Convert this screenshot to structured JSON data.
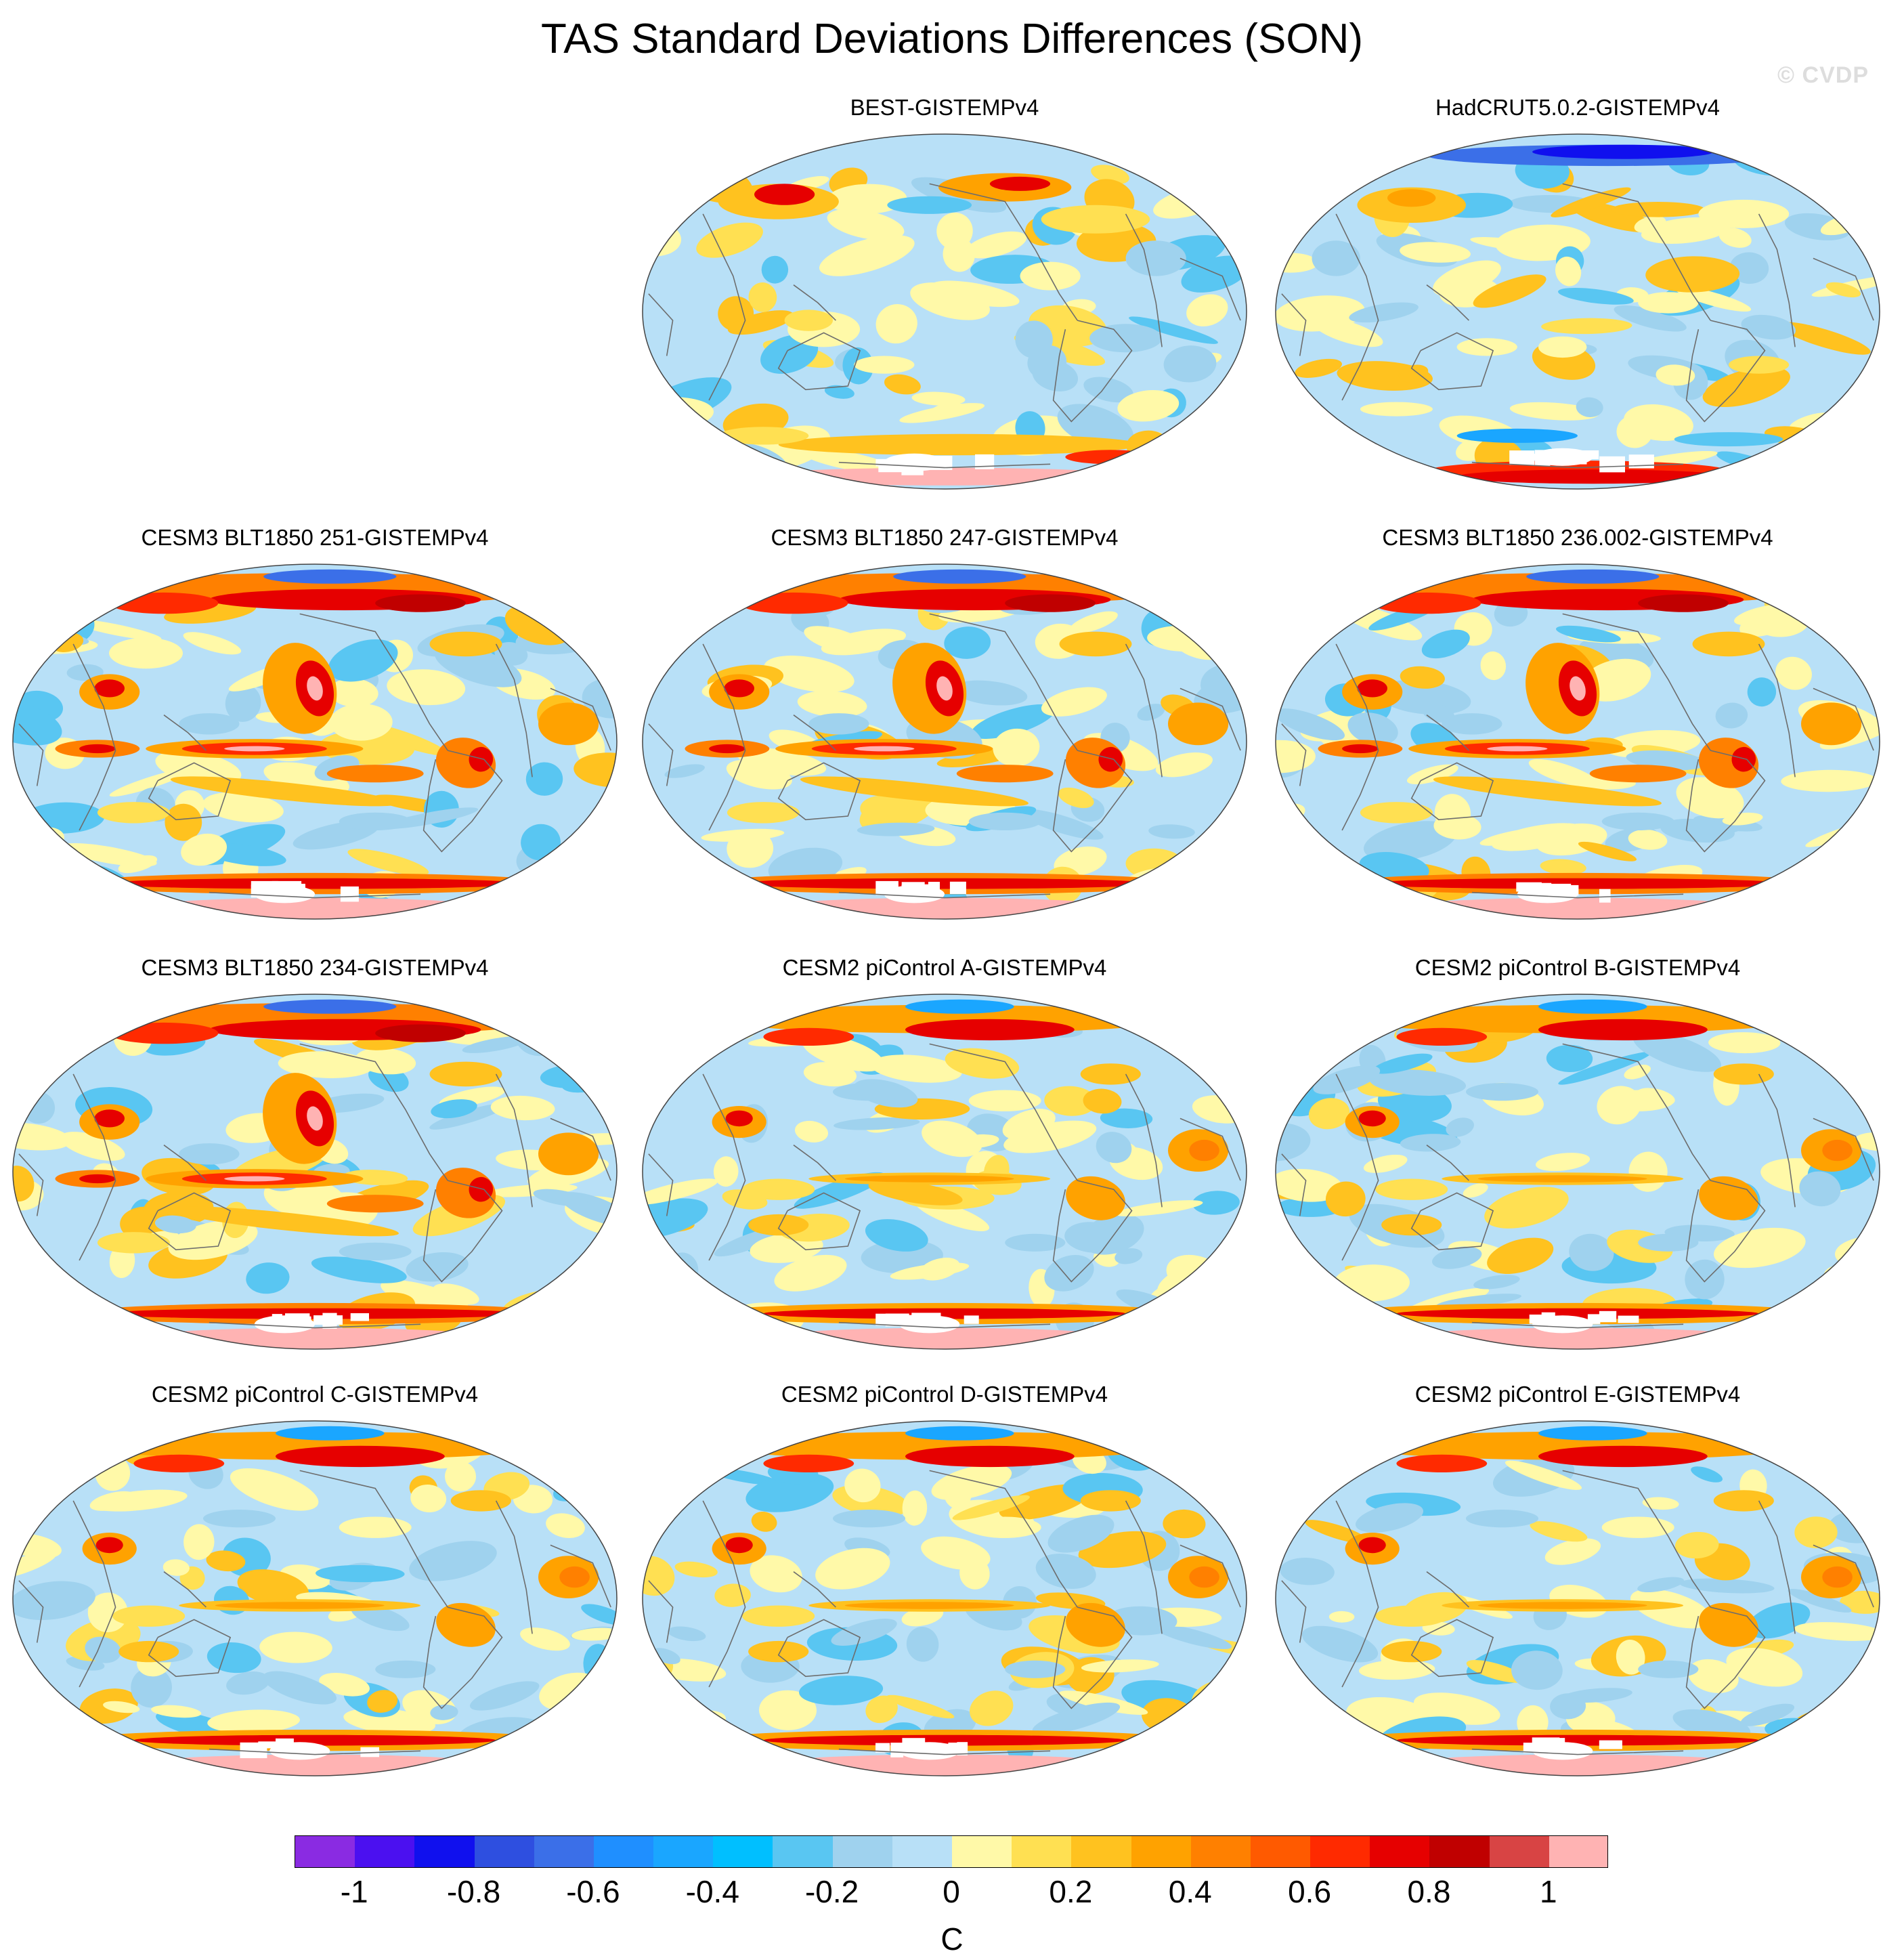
{
  "chart_data": {
    "type": "heatmap",
    "title": "TAS Standard Deviations Differences (SON)",
    "credit": "© CVDP",
    "units": "C",
    "colorbar": {
      "labels": [
        "-1",
        "-0.8",
        "-0.6",
        "-0.4",
        "-0.2",
        "0",
        "0.2",
        "0.4",
        "0.6",
        "0.8",
        "1"
      ],
      "colors": [
        "#8a2be2",
        "#4b10f0",
        "#1010ee",
        "#2e4fe0",
        "#3b6fe8",
        "#1f8fff",
        "#1aa6ff",
        "#00bfff",
        "#59c6f2",
        "#9fd2ee",
        "#b8e0f7",
        "#fff9a8",
        "#ffe052",
        "#ffc21f",
        "#ffa200",
        "#ff8000",
        "#ff5a00",
        "#ff2a00",
        "#e60000",
        "#c00000",
        "#d84444",
        "#ffb3b3"
      ]
    },
    "panels": [
      {
        "label": "BEST-GISTEMPv4",
        "style": "obs1"
      },
      {
        "label": "HadCRUT5.0.2-GISTEMPv4",
        "style": "obs2"
      },
      {
        "label": "CESM3 BLT1850 251-GISTEMPv4",
        "style": "cesm3"
      },
      {
        "label": "CESM3 BLT1850 247-GISTEMPv4",
        "style": "cesm3"
      },
      {
        "label": "CESM3 BLT1850 236.002-GISTEMPv4",
        "style": "cesm3"
      },
      {
        "label": "CESM3 BLT1850 234-GISTEMPv4",
        "style": "cesm3"
      },
      {
        "label": "CESM2 piControl A-GISTEMPv4",
        "style": "cesm2"
      },
      {
        "label": "CESM2 piControl B-GISTEMPv4",
        "style": "cesm2"
      },
      {
        "label": "CESM2 piControl C-GISTEMPv4",
        "style": "cesm2"
      },
      {
        "label": "CESM2 piControl D-GISTEMPv4",
        "style": "cesm2"
      },
      {
        "label": "CESM2 piControl E-GISTEMPv4",
        "style": "cesm2"
      }
    ]
  }
}
